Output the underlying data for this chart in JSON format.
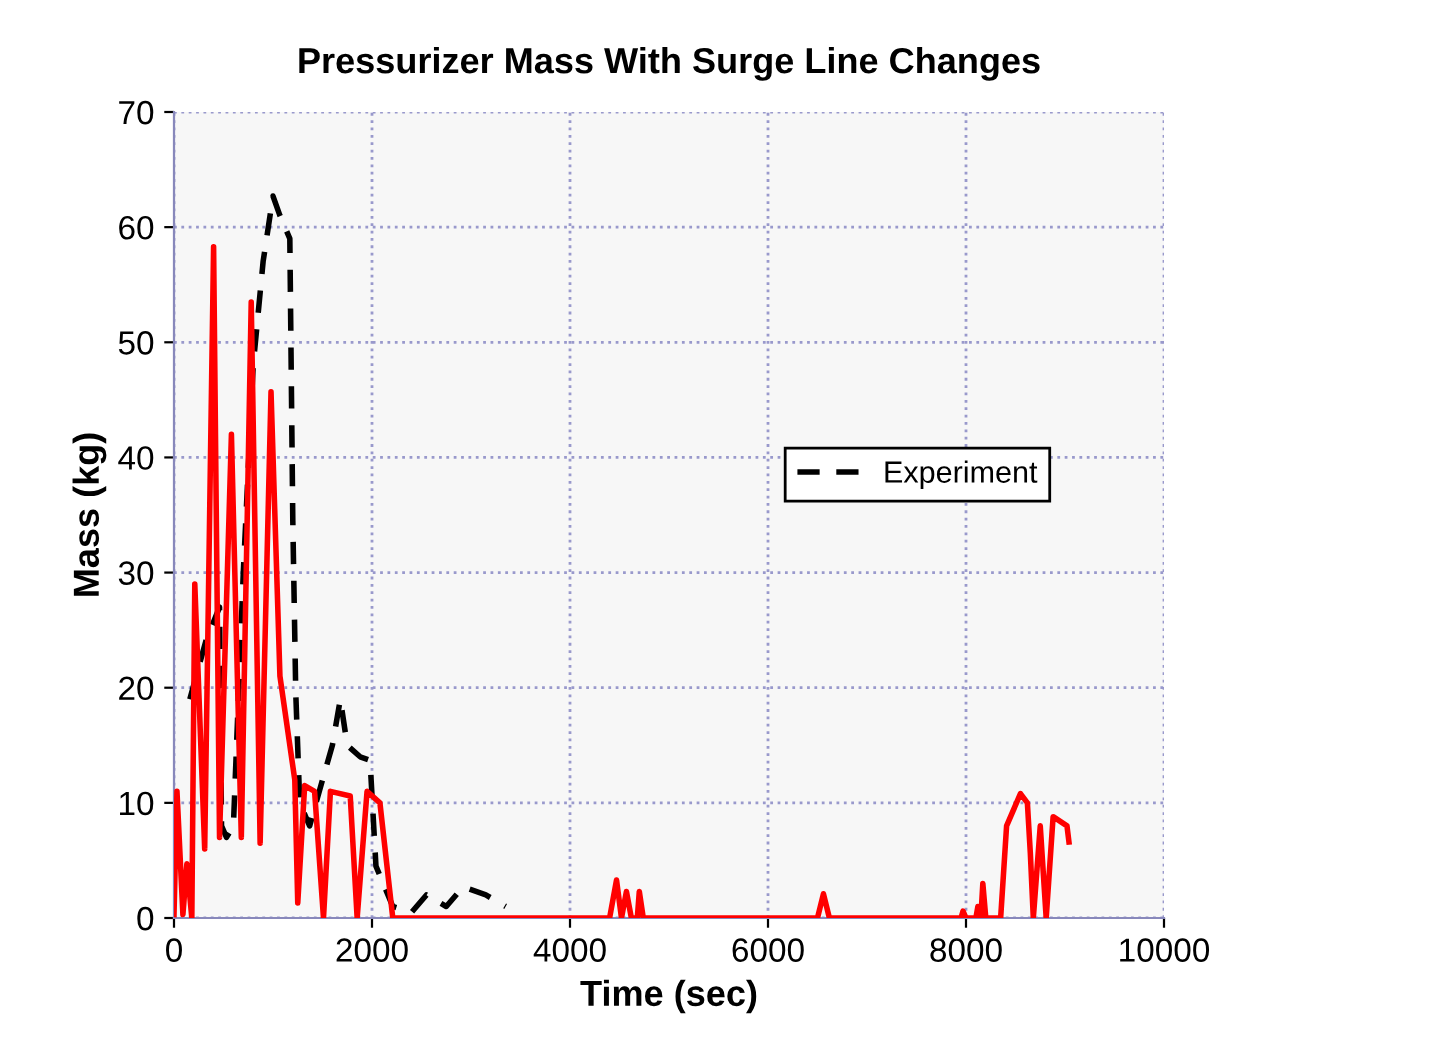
{
  "chart_data": {
    "type": "line",
    "title": "Pressurizer Mass With Surge Line Changes",
    "xlabel": "Time (sec)",
    "ylabel": "Mass (kg)",
    "xlim": [
      0,
      10000
    ],
    "xticks": [
      0,
      2000,
      4000,
      6000,
      8000,
      10000
    ],
    "ylim": [
      0,
      70
    ],
    "yticks": [
      0,
      10,
      20,
      30,
      40,
      50,
      60,
      70
    ],
    "grid": true,
    "legend": "right",
    "series": [
      {
        "name": "Experiment",
        "color": "#000000",
        "line_style": "dashed",
        "x": [
          160,
          320,
          460,
          480,
          530,
          600,
          700,
          800,
          900,
          1000,
          1070,
          1170,
          1200,
          1230,
          1270,
          1370,
          1500,
          1600,
          1680,
          1750,
          1880,
          1980,
          2040,
          2210,
          2400,
          2550,
          2750,
          2920,
          3150,
          3350
        ],
        "values": [
          19,
          24,
          27,
          8,
          7,
          8,
          30,
          48,
          57,
          62.7,
          61,
          59,
          34.5,
          19.5,
          10,
          8,
          12,
          15,
          19,
          15,
          14,
          13.7,
          4.5,
          1,
          0.5,
          2,
          1,
          2.7,
          2,
          1
        ]
      },
      {
        "color": "#ff0000",
        "line_style": "solid",
        "x": [
          0,
          30,
          90,
          130,
          180,
          210,
          310,
          400,
          460,
          580,
          680,
          780,
          870,
          980,
          1070,
          1220,
          1250,
          1320,
          1420,
          1510,
          1580,
          1780,
          1850,
          1950,
          2080,
          2210,
          4400,
          4470,
          4520,
          4570,
          4620,
          4680,
          4700,
          4740,
          6500,
          6560,
          6620,
          7950,
          7970,
          8000,
          8100,
          8120,
          8150,
          8170,
          8200,
          8350,
          8410,
          8550,
          8620,
          8650,
          8680,
          8750,
          8810,
          8880,
          9020,
          9040
        ],
        "values": [
          0.3,
          11,
          0.3,
          4.7,
          0,
          29,
          6,
          58.3,
          7,
          42,
          7,
          53.5,
          6.5,
          45.7,
          21,
          12,
          1.3,
          11.5,
          11,
          0,
          11,
          10.6,
          0,
          11,
          10,
          0,
          0,
          3.3,
          0,
          2.3,
          0,
          0,
          2.3,
          0,
          0,
          2.1,
          0,
          0,
          0.6,
          0,
          0,
          1,
          0,
          3,
          0,
          0,
          8,
          10.8,
          10,
          5.6,
          0,
          8,
          0,
          8.8,
          8,
          6.6
        ]
      }
    ]
  }
}
